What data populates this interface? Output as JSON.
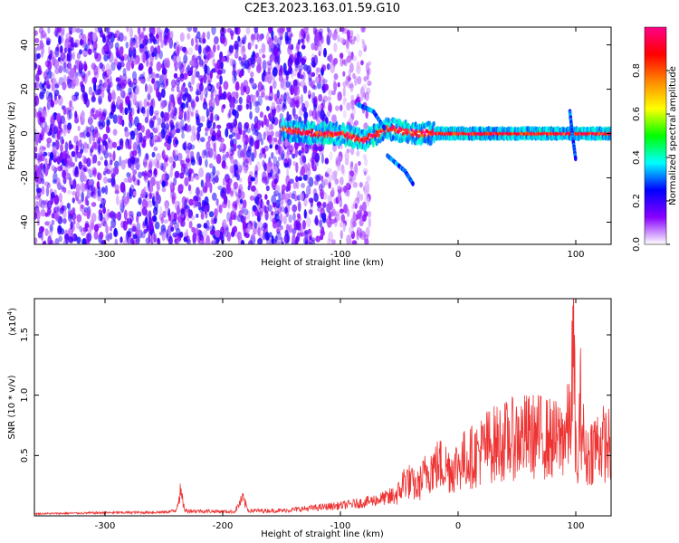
{
  "title": "C2E3.2023.163.01.59.G10",
  "chart_data": [
    {
      "type": "heatmap",
      "title": "",
      "xlabel": "Height of straight line (km)",
      "ylabel": "Frequency (Hz)",
      "xlim": [
        -360,
        130
      ],
      "ylim": [
        -50,
        48
      ],
      "xticks": [
        -300,
        -200,
        -100,
        0,
        100
      ],
      "yticks": [
        -40,
        -20,
        0,
        20,
        40
      ],
      "description_regions": [
        {
          "x_from": -360,
          "x_to": -110,
          "amplitude": 0.15,
          "pattern": "broadband noise, dense"
        },
        {
          "x_from": -110,
          "x_to": -75,
          "amplitude": 0.08,
          "pattern": "broadband noise, sparse"
        },
        {
          "x_from": -150,
          "x_to": 130,
          "amplitude": 0.55,
          "pattern": "narrow band near 0 Hz"
        }
      ],
      "colorbar": {
        "label": "Normalized spectral amplitude",
        "range": [
          0,
          1
        ],
        "ticks": [
          0.0,
          0.2,
          0.4,
          0.6,
          0.8
        ],
        "tick_labels": [
          "0.0",
          "0.2",
          "0.4",
          "0.6",
          "0.8"
        ],
        "colors": [
          "#ffffff",
          "#8800ff",
          "#0000ff",
          "#00ffff",
          "#00ff00",
          "#ffff00",
          "#ff8800",
          "#ff0000",
          "#ff0088"
        ]
      },
      "band_center_hz": [
        {
          "x": -150,
          "f": 2
        },
        {
          "x": -120,
          "f": 0
        },
        {
          "x": -100,
          "f": 0
        },
        {
          "x": -80,
          "f": -3
        },
        {
          "x": -60,
          "f": 2
        },
        {
          "x": -30,
          "f": 0
        },
        {
          "x": 0,
          "f": 0
        },
        {
          "x": 50,
          "f": 0
        },
        {
          "x": 100,
          "f": 0
        },
        {
          "x": 130,
          "f": 0
        }
      ],
      "branches": [
        {
          "points": [
            {
              "x": -85,
              "f": 13
            },
            {
              "x": -72,
              "f": 10
            },
            {
              "x": -62,
              "f": 2
            }
          ]
        },
        {
          "points": [
            {
              "x": -60,
              "f": -10
            },
            {
              "x": -45,
              "f": -17
            },
            {
              "x": -38,
              "f": -23
            }
          ]
        },
        {
          "points": [
            {
              "x": 95,
              "f": 10
            },
            {
              "x": 97,
              "f": 0
            },
            {
              "x": 100,
              "f": -12
            }
          ]
        }
      ]
    },
    {
      "type": "line",
      "title": "",
      "xlabel": "Height of straight line (km)",
      "ylabel": "SNR (10 * v/v)",
      "y_multiplier": "(x10",
      "y_multiplier_exp": "4",
      "y_multiplier_close": ")",
      "xlim": [
        -360,
        130
      ],
      "ylim": [
        0,
        18000
      ],
      "xticks": [
        -300,
        -200,
        -100,
        0,
        100
      ],
      "yticks": [
        5000,
        10000,
        15000
      ],
      "ytick_labels": [
        "0.5",
        "1.0",
        "1.5"
      ],
      "color": "#ee3333",
      "envelope": [
        {
          "x": -360,
          "y": 200
        },
        {
          "x": -300,
          "y": 300
        },
        {
          "x": -250,
          "y": 350
        },
        {
          "x": -240,
          "y": 500
        },
        {
          "x": -236,
          "y": 2300
        },
        {
          "x": -232,
          "y": 500
        },
        {
          "x": -190,
          "y": 400
        },
        {
          "x": -183,
          "y": 1700
        },
        {
          "x": -178,
          "y": 500
        },
        {
          "x": -150,
          "y": 500
        },
        {
          "x": -130,
          "y": 700
        },
        {
          "x": -100,
          "y": 1000
        },
        {
          "x": -80,
          "y": 1300
        },
        {
          "x": -60,
          "y": 1800
        },
        {
          "x": -50,
          "y": 2500
        },
        {
          "x": -45,
          "y": 4000
        },
        {
          "x": -35,
          "y": 3000
        },
        {
          "x": -25,
          "y": 5000
        },
        {
          "x": -15,
          "y": 5500
        },
        {
          "x": -5,
          "y": 5000
        },
        {
          "x": 5,
          "y": 6000
        },
        {
          "x": 15,
          "y": 6500
        },
        {
          "x": 25,
          "y": 7500
        },
        {
          "x": 40,
          "y": 8000
        },
        {
          "x": 55,
          "y": 8500
        },
        {
          "x": 70,
          "y": 8500
        },
        {
          "x": 85,
          "y": 8000
        },
        {
          "x": 95,
          "y": 9500
        },
        {
          "x": 98,
          "y": 18000
        },
        {
          "x": 101,
          "y": 3000
        },
        {
          "x": 104,
          "y": 12000
        },
        {
          "x": 108,
          "y": 6000
        },
        {
          "x": 115,
          "y": 7500
        },
        {
          "x": 122,
          "y": 7800
        },
        {
          "x": 130,
          "y": 7500
        }
      ]
    }
  ]
}
